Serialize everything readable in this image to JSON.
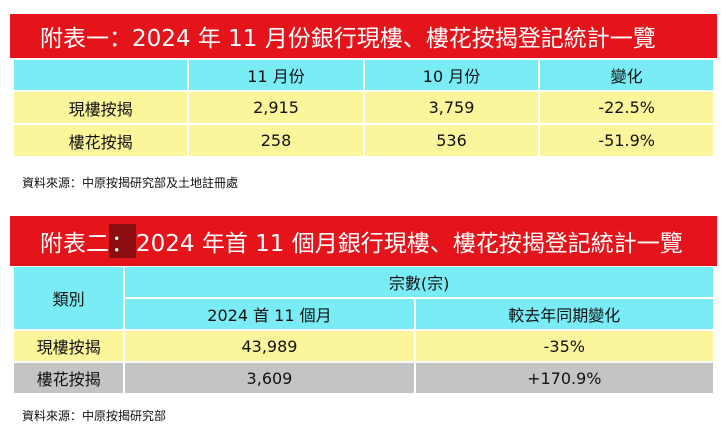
{
  "table1": {
    "title": "附表一：2024 年 11 月份銀行現樓、樓花按揭登記統計一覽",
    "headers": [
      "",
      "11 月份",
      "10 月份",
      "變化"
    ],
    "rows": [
      {
        "label": "現樓按揭",
        "nov": "2,915",
        "oct": "3,759",
        "change": "-22.5%"
      },
      {
        "label": "樓花按揭",
        "nov": "258",
        "oct": "536",
        "change": "-51.9%"
      }
    ],
    "source": "資料來源：中原按揭研究部及土地註冊處"
  },
  "table2": {
    "title_prefix": "附表二",
    "title_colon": "：",
    "title_rest": "2024 年首 11 個月銀行現樓、樓花按揭登記統計一覽",
    "category_header": "類別",
    "group_header": "宗數(宗)",
    "col1_header": "2024 首 11 個月",
    "col2_header": "較去年同期變化",
    "rows": [
      {
        "label": "現樓按揭",
        "ytd": "43,989",
        "yoy": "-35%"
      },
      {
        "label": "樓花按揭",
        "ytd": "3,609",
        "yoy": "+170.9%"
      }
    ],
    "source": "資料來源：中原按揭研究部"
  },
  "colors": {
    "title_red": "#e5141b",
    "highlight_dark_red": "#8b0d10",
    "header_cyan": "#79ecf5",
    "row_yellow": "#fbf59c",
    "row_gray": "#c4c4c4"
  }
}
